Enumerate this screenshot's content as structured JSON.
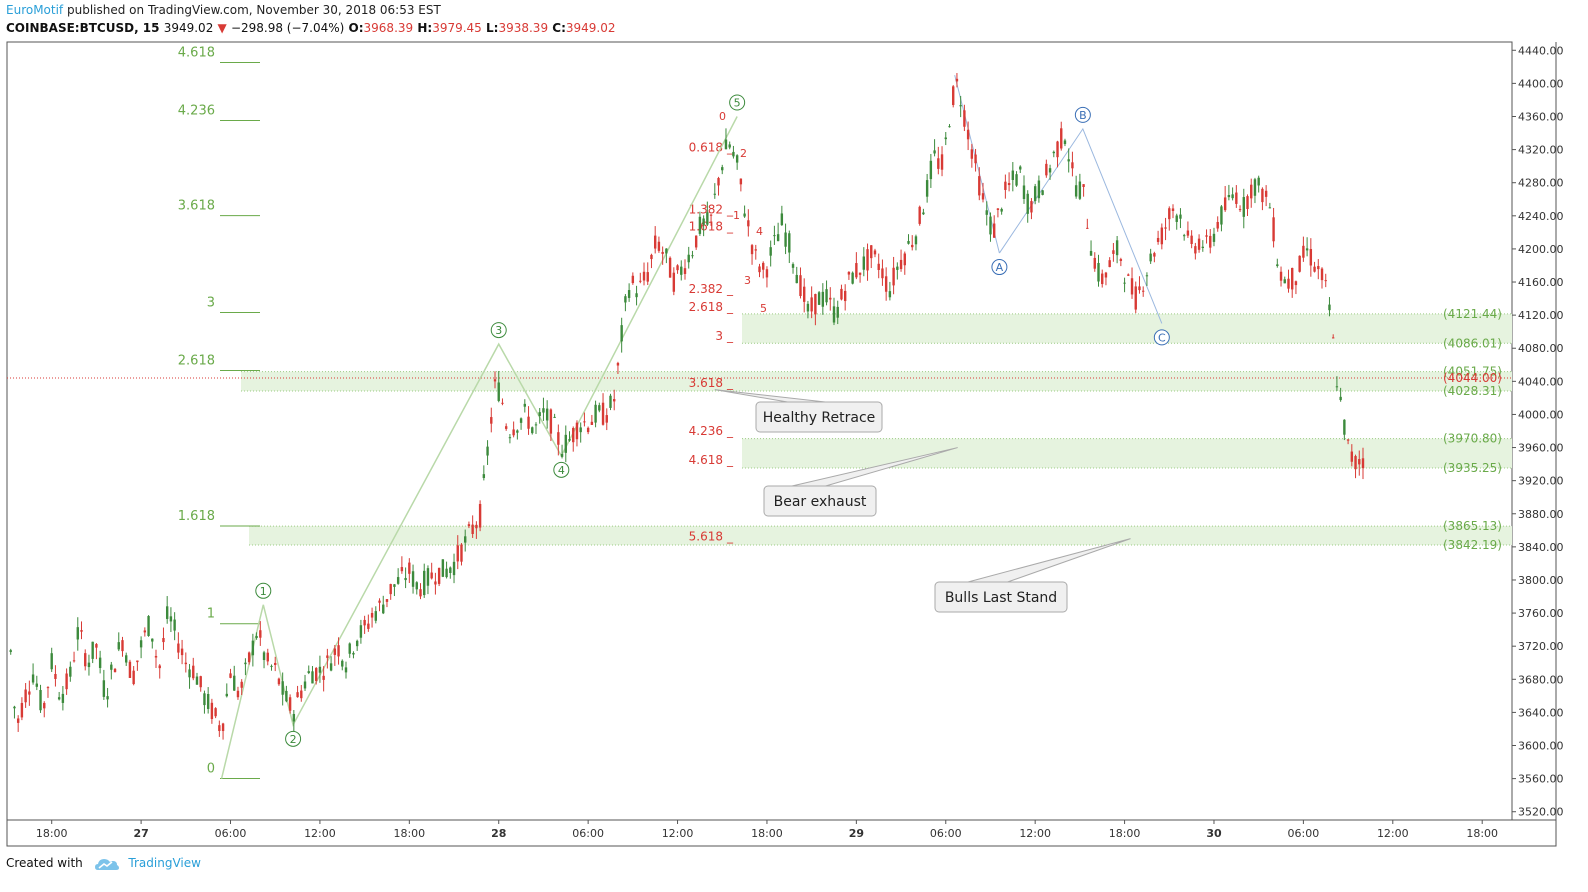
{
  "header": {
    "author": "EuroMotif",
    "published_text": "published on TradingView.com, November 30, 2018 06:53 EST",
    "symbol": "COINBASE:BTCUSD, 15",
    "last": "3949.02",
    "change": "−298.98 (−7.04%)",
    "o_label": "O:",
    "o": "3968.39",
    "h_label": "H:",
    "h": "3979.45",
    "l_label": "L:",
    "l": "3938.39",
    "c_label": "C:",
    "c": "3949.02"
  },
  "footer": {
    "created_with": "Created with",
    "brand": "TradingView"
  },
  "colors": {
    "up": "#3c8a3c",
    "down": "#d83a35",
    "fib_green": "#6aaa4a",
    "fib_red": "#d83a35",
    "zone": "#e6f3df",
    "wave_line": "#b9d9a9",
    "abc": "#3a6fb6",
    "axis_text": "#333333"
  },
  "chart_data": {
    "type": "candlestick",
    "ylim": [
      3510,
      4450
    ],
    "y_ticks": [
      "3520.00",
      "3560.00",
      "3600.00",
      "3640.00",
      "3680.00",
      "3720.00",
      "3760.00",
      "3800.00",
      "3840.00",
      "3880.00",
      "3920.00",
      "3960.00",
      "4000.00",
      "4040.00",
      "4080.00",
      "4120.00",
      "4160.00",
      "4200.00",
      "4240.00",
      "4280.00",
      "4320.00",
      "4360.00",
      "4400.00",
      "4440.00"
    ],
    "x_labels": [
      "18:00",
      "27",
      "06:00",
      "12:00",
      "18:00",
      "28",
      "06:00",
      "12:00",
      "18:00",
      "29",
      "06:00",
      "12:00",
      "18:00",
      "30",
      "06:00",
      "12:00",
      "18:00"
    ],
    "x_label_hours": [
      -6,
      0,
      6,
      12,
      18,
      24,
      30,
      36,
      42,
      48,
      54,
      60,
      66,
      72,
      78,
      84,
      90
    ],
    "x_range_hours": [
      -9,
      92
    ],
    "close_path": [
      [
        -9,
        3780
      ],
      [
        -8.4,
        3620
      ],
      [
        -7.8,
        3660
      ],
      [
        -7.2,
        3690
      ],
      [
        -6.6,
        3640
      ],
      [
        -6,
        3700
      ],
      [
        -5.4,
        3660
      ],
      [
        -4.8,
        3680
      ],
      [
        -4.2,
        3740
      ],
      [
        -3.6,
        3700
      ],
      [
        -3,
        3720
      ],
      [
        -2.4,
        3660
      ],
      [
        -1.8,
        3700
      ],
      [
        -1.2,
        3730
      ],
      [
        -0.6,
        3680
      ],
      [
        0,
        3720
      ],
      [
        0.6,
        3750
      ],
      [
        1.2,
        3690
      ],
      [
        1.8,
        3760
      ],
      [
        2.4,
        3730
      ],
      [
        3,
        3700
      ],
      [
        3.6,
        3690
      ],
      [
        4.2,
        3660
      ],
      [
        4.8,
        3640
      ],
      [
        5.4,
        3620
      ],
      [
        6,
        3690
      ],
      [
        6.6,
        3660
      ],
      [
        7.2,
        3700
      ],
      [
        7.8,
        3740
      ],
      [
        8.4,
        3700
      ],
      [
        9,
        3690
      ],
      [
        9.6,
        3660
      ],
      [
        10.2,
        3640
      ],
      [
        10.8,
        3670
      ],
      [
        11.4,
        3690
      ],
      [
        12,
        3690
      ],
      [
        12.6,
        3700
      ],
      [
        13.2,
        3720
      ],
      [
        13.8,
        3700
      ],
      [
        14.4,
        3730
      ],
      [
        15,
        3740
      ],
      [
        15.6,
        3760
      ],
      [
        16.2,
        3770
      ],
      [
        16.8,
        3790
      ],
      [
        17.4,
        3800
      ],
      [
        18,
        3810
      ],
      [
        18.6,
        3790
      ],
      [
        19.2,
        3800
      ],
      [
        19.8,
        3810
      ],
      [
        20.4,
        3810
      ],
      [
        21,
        3820
      ],
      [
        21.6,
        3840
      ],
      [
        22.2,
        3860
      ],
      [
        22.8,
        3880
      ],
      [
        23.4,
        3980
      ],
      [
        23.8,
        4040
      ],
      [
        24.2,
        4020
      ],
      [
        24.6,
        3980
      ],
      [
        25.2,
        3990
      ],
      [
        25.8,
        4000
      ],
      [
        26.4,
        3980
      ],
      [
        27,
        4000
      ],
      [
        27.6,
        3990
      ],
      [
        28.2,
        3960
      ],
      [
        28.8,
        3970
      ],
      [
        29.4,
        3990
      ],
      [
        30,
        3990
      ],
      [
        30.6,
        4000
      ],
      [
        31.2,
        4000
      ],
      [
        31.8,
        4020
      ],
      [
        32.4,
        4120
      ],
      [
        32.8,
        4160
      ],
      [
        33.4,
        4150
      ],
      [
        34,
        4170
      ],
      [
        34.6,
        4210
      ],
      [
        35.2,
        4190
      ],
      [
        35.8,
        4160
      ],
      [
        36.4,
        4180
      ],
      [
        37,
        4200
      ],
      [
        37.6,
        4230
      ],
      [
        38.2,
        4230
      ],
      [
        38.8,
        4290
      ],
      [
        39.4,
        4330
      ],
      [
        40,
        4300
      ],
      [
        40.6,
        4240
      ],
      [
        41.2,
        4190
      ],
      [
        41.8,
        4170
      ],
      [
        42.4,
        4200
      ],
      [
        43,
        4230
      ],
      [
        43.6,
        4200
      ],
      [
        44.2,
        4160
      ],
      [
        44.8,
        4120
      ],
      [
        45.4,
        4140
      ],
      [
        46,
        4140
      ],
      [
        46.6,
        4120
      ],
      [
        47.2,
        4150
      ],
      [
        47.8,
        4170
      ],
      [
        48.4,
        4180
      ],
      [
        49,
        4190
      ],
      [
        49.6,
        4180
      ],
      [
        50.2,
        4150
      ],
      [
        50.8,
        4180
      ],
      [
        51.4,
        4200
      ],
      [
        52,
        4220
      ],
      [
        52.6,
        4260
      ],
      [
        53.2,
        4310
      ],
      [
        53.8,
        4300
      ],
      [
        54.4,
        4380
      ],
      [
        54.8,
        4400
      ],
      [
        55.4,
        4350
      ],
      [
        56,
        4300
      ],
      [
        56.6,
        4250
      ],
      [
        57.2,
        4220
      ],
      [
        57.8,
        4260
      ],
      [
        58.4,
        4280
      ],
      [
        59,
        4290
      ],
      [
        59.6,
        4250
      ],
      [
        60.2,
        4270
      ],
      [
        60.8,
        4290
      ],
      [
        61.4,
        4320
      ],
      [
        62,
        4340
      ],
      [
        62.6,
        4280
      ],
      [
        63.2,
        4270
      ],
      [
        63.8,
        4200
      ],
      [
        64.4,
        4160
      ],
      [
        65,
        4180
      ],
      [
        65.6,
        4200
      ],
      [
        66.2,
        4160
      ],
      [
        66.8,
        4140
      ],
      [
        67.4,
        4170
      ],
      [
        68,
        4200
      ],
      [
        68.6,
        4220
      ],
      [
        69.2,
        4250
      ],
      [
        69.8,
        4240
      ],
      [
        70.4,
        4200
      ],
      [
        71,
        4210
      ],
      [
        71.6,
        4200
      ],
      [
        72.2,
        4230
      ],
      [
        72.8,
        4250
      ],
      [
        73.4,
        4270
      ],
      [
        74,
        4250
      ],
      [
        74.6,
        4280
      ],
      [
        75.2,
        4270
      ],
      [
        75.8,
        4250
      ],
      [
        76.4,
        4170
      ],
      [
        77,
        4160
      ],
      [
        77.6,
        4170
      ],
      [
        78.2,
        4200
      ],
      [
        78.8,
        4180
      ],
      [
        79.4,
        4160
      ],
      [
        79.8,
        4120
      ],
      [
        80.2,
        4050
      ],
      [
        80.6,
        4000
      ],
      [
        81,
        3960
      ],
      [
        81.4,
        3940
      ],
      [
        81.8,
        3945
      ],
      [
        82.1,
        3949
      ]
    ],
    "fib_left": [
      {
        "label": "4.618",
        "price": 4430
      },
      {
        "label": "4.236",
        "price": 4360
      },
      {
        "label": "3.618",
        "price": 4245
      },
      {
        "label": "3",
        "price": 4128
      },
      {
        "label": "2.618",
        "price": 4058
      },
      {
        "label": "1.618",
        "price": 3870
      },
      {
        "label": "1",
        "price": 3752
      },
      {
        "label": "0",
        "price": 3565
      }
    ],
    "fib_mid": [
      {
        "label": "0.618",
        "price": 4318
      },
      {
        "label": "1.382",
        "price": 4243
      },
      {
        "label": "1.618",
        "price": 4222
      },
      {
        "label": "2.382",
        "price": 4147
      },
      {
        "label": "2.618",
        "price": 4125
      },
      {
        "label": "3",
        "price": 4090
      },
      {
        "label": "3.618",
        "price": 4033
      },
      {
        "label": "4.236",
        "price": 3975
      },
      {
        "label": "4.618",
        "price": 3940
      },
      {
        "label": "5.618",
        "price": 3848
      }
    ],
    "mid_sub": [
      "0",
      "2",
      "1",
      "4",
      "3",
      "5"
    ],
    "zones": [
      {
        "top": 4121.44,
        "bottom": 4086.01,
        "label_top": "(4121.44)",
        "label_bottom": "(4086.01)"
      },
      {
        "top": 4051.75,
        "bottom": 4028.31,
        "label_top": "(4051.75)",
        "label_bottom": "(4028.31)"
      },
      {
        "top": 3970.8,
        "bottom": 3935.25,
        "label_top": "(3970.80)",
        "label_bottom": "(3935.25)"
      },
      {
        "top": 3865.13,
        "bottom": 3842.19,
        "label_top": "(3865.13)",
        "label_bottom": "(3842.19)"
      }
    ],
    "red_line": {
      "price": 4044.0,
      "label": "(4044.00)"
    },
    "waves": [
      {
        "label": "1",
        "t": 8.2,
        "price": 3770,
        "pos": "above"
      },
      {
        "label": "2",
        "t": 10.2,
        "price": 3625,
        "pos": "below"
      },
      {
        "label": "3",
        "t": 24,
        "price": 4085,
        "pos": "above"
      },
      {
        "label": "4",
        "t": 28.2,
        "price": 3950,
        "pos": "below"
      },
      {
        "label": "5",
        "t": 40,
        "price": 4360,
        "pos": "above"
      }
    ],
    "abc": [
      {
        "label": "A",
        "t": 57.6,
        "price": 4195,
        "pos": "below"
      },
      {
        "label": "B",
        "t": 63.2,
        "price": 4345,
        "pos": "above"
      },
      {
        "label": "C",
        "t": 68.5,
        "price": 4110,
        "pos": "below"
      }
    ],
    "callouts": [
      {
        "text": "Healthy Retrace",
        "tip_t": 38.5,
        "tip_price": 4030
      },
      {
        "text": "Bear exhaust",
        "tip_t": 54.8,
        "tip_price": 3960
      },
      {
        "text": "Bulls Last Stand",
        "tip_t": 66.4,
        "tip_price": 3850
      }
    ]
  }
}
